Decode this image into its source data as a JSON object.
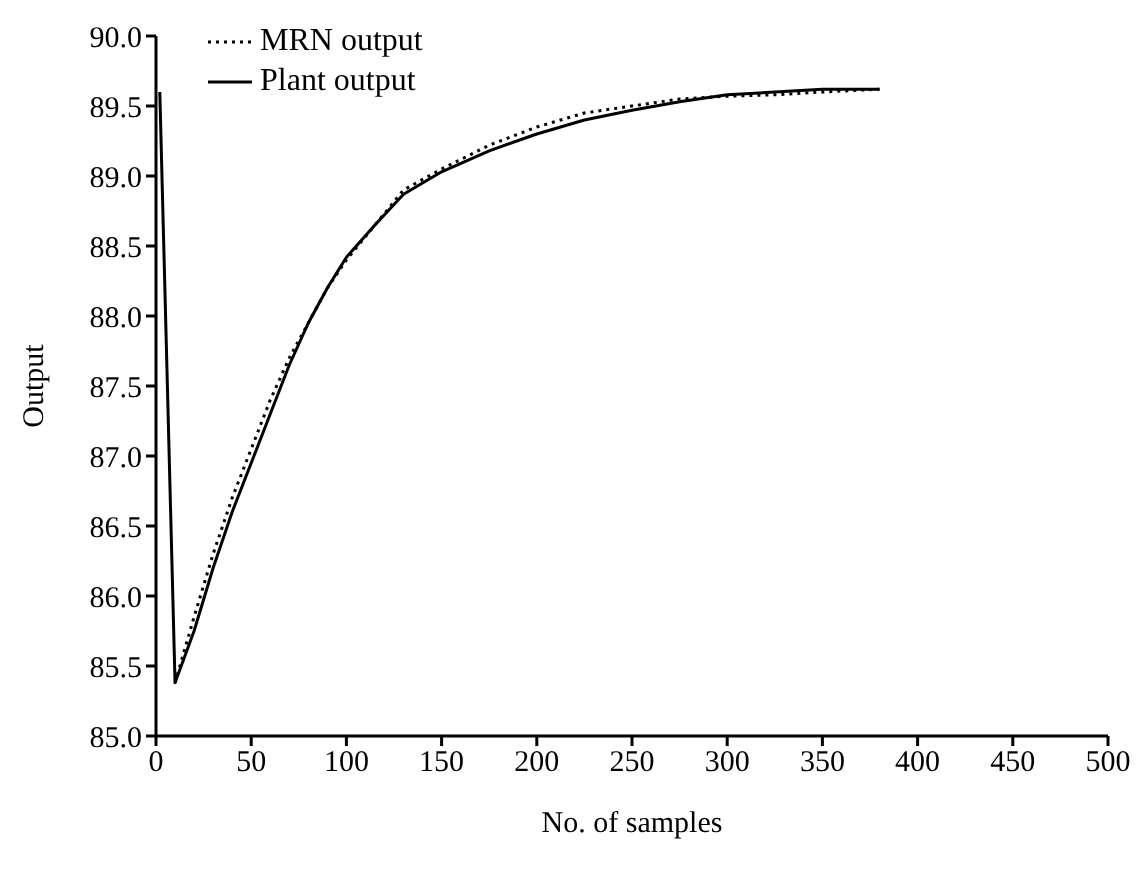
{
  "chart_data": {
    "type": "line",
    "xlabel": "No. of samples",
    "ylabel": "Output",
    "xlim": [
      0,
      500
    ],
    "xticks": [
      0,
      50,
      100,
      150,
      200,
      250,
      300,
      350,
      400,
      450,
      500
    ],
    "ylim": [
      85,
      90
    ],
    "yticks": [
      {
        "value": 85,
        "label": "85.0"
      },
      {
        "value": 85.5,
        "label": "85.5"
      },
      {
        "value": 86,
        "label": "86.0"
      },
      {
        "value": 86.5,
        "label": "86.5"
      },
      {
        "value": 87,
        "label": "87.0"
      },
      {
        "value": 87.5,
        "label": "87.5"
      },
      {
        "value": 88,
        "label": "88.0"
      },
      {
        "value": 88.5,
        "label": "88.5"
      },
      {
        "value": 89,
        "label": "89.0"
      },
      {
        "value": 89.5,
        "label": "89.5"
      },
      {
        "value": 90,
        "label": "90.0"
      }
    ],
    "grid": false,
    "legend": "top left",
    "marker": "none",
    "series": [
      {
        "name": "MRN output",
        "color": "#000000",
        "line_style": "dotted",
        "x": [
          10,
          20,
          30,
          40,
          50,
          60,
          70,
          80,
          90,
          100,
          115,
          130,
          150,
          175,
          200,
          225,
          250,
          275,
          300,
          325,
          350,
          380
        ],
        "values": [
          85.38,
          85.85,
          86.3,
          86.7,
          87.05,
          87.4,
          87.7,
          87.95,
          88.2,
          88.4,
          88.65,
          88.9,
          89.05,
          89.22,
          89.35,
          89.45,
          89.5,
          89.55,
          89.57,
          89.58,
          89.6,
          89.62
        ]
      },
      {
        "name": "Plant output",
        "color": "#000000",
        "line_style": "solid",
        "x": [
          2,
          10,
          20,
          30,
          40,
          50,
          60,
          70,
          80,
          90,
          100,
          115,
          130,
          150,
          175,
          200,
          225,
          250,
          275,
          300,
          325,
          350,
          380
        ],
        "values": [
          89.6,
          85.38,
          85.75,
          86.2,
          86.6,
          86.95,
          87.3,
          87.65,
          87.95,
          88.2,
          88.42,
          88.65,
          88.87,
          89.03,
          89.18,
          89.3,
          89.4,
          89.47,
          89.53,
          89.58,
          89.6,
          89.62,
          89.62
        ]
      }
    ]
  }
}
